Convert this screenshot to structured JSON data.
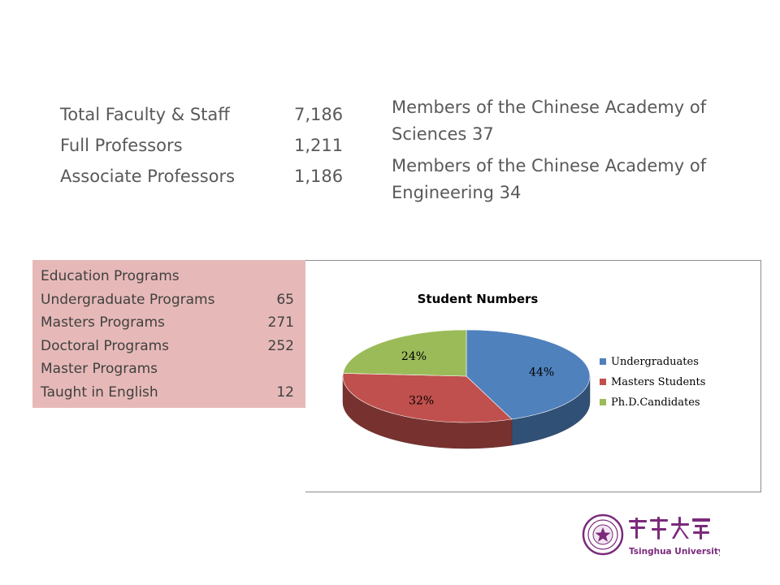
{
  "stats": [
    {
      "label": "Total Faculty & Staff",
      "value": "7,186"
    },
    {
      "label": "Full Professors",
      "value": "1,211"
    },
    {
      "label": "Associate Professors",
      "value": "1,186"
    }
  ],
  "academy": [
    {
      "text": "Members of the Chinese Academy of Sciences  37"
    },
    {
      "text": "Members of the Chinese Academy of Engineering  34"
    }
  ],
  "education": {
    "title": "Education Programs",
    "rows": [
      {
        "label": "Undergraduate Programs",
        "value": "65"
      },
      {
        "label": "Masters Programs",
        "value": "271"
      },
      {
        "label": "Doctoral Programs",
        "value": "252"
      },
      {
        "label": "Master Programs",
        "value": ""
      },
      {
        "label": "Taught in English",
        "value": "12"
      }
    ]
  },
  "chart_data": {
    "type": "pie",
    "title": "Student Numbers",
    "legend_position": "right",
    "slices": [
      {
        "name": "Undergraduates",
        "value": 44,
        "label": "44%",
        "color": "#4f81bd"
      },
      {
        "name": "Masters Students",
        "value": 32,
        "label": "32%",
        "color": "#c0504d"
      },
      {
        "name": "Ph.D.Candidates",
        "value": 24,
        "label": "24%",
        "color": "#9bbb59"
      }
    ]
  },
  "logo": {
    "chinese": "清華大學",
    "english": "Tsinghua University",
    "color": "#7b2a7b"
  }
}
